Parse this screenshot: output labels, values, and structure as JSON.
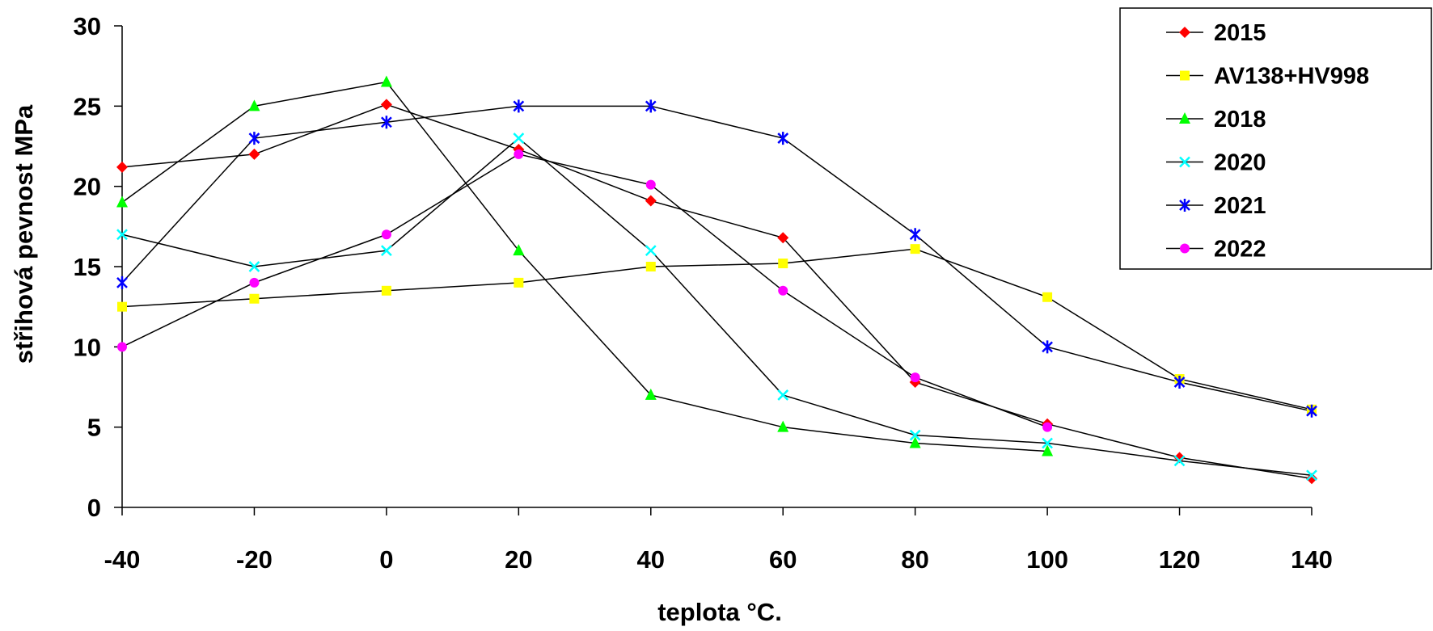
{
  "chart_data": {
    "type": "line",
    "xlabel": "teplota °C.",
    "ylabel": "střihová pevnost MPa",
    "x": [
      -40,
      -20,
      0,
      20,
      40,
      60,
      80,
      100,
      120,
      140
    ],
    "xlim": [
      -40,
      140
    ],
    "ylim": [
      0,
      30
    ],
    "yticks": [
      0,
      5,
      10,
      15,
      20,
      25,
      30
    ],
    "grid": false,
    "legend_position": "top-right",
    "series": [
      {
        "name": "2015",
        "color": "#ff0000",
        "marker": "diamond",
        "values": [
          21.2,
          22.0,
          25.1,
          22.3,
          19.1,
          16.8,
          7.8,
          5.2,
          3.1,
          1.8
        ]
      },
      {
        "name": "AV138+HV998",
        "color": "#ffff00",
        "marker": "square",
        "values": [
          12.5,
          13.0,
          13.5,
          14.0,
          15.0,
          15.2,
          16.1,
          13.1,
          8.0,
          6.1
        ]
      },
      {
        "name": "2018",
        "color": "#00ff00",
        "marker": "triangle",
        "values": [
          19.0,
          25.0,
          26.5,
          16.0,
          7.0,
          5.0,
          4.0,
          3.5,
          null,
          null
        ]
      },
      {
        "name": "2020",
        "color": "#00ffff",
        "marker": "x",
        "values": [
          17.0,
          15.0,
          16.0,
          23.0,
          16.0,
          7.0,
          4.5,
          4.0,
          2.9,
          2.0
        ]
      },
      {
        "name": "2021",
        "color": "#0000ff",
        "marker": "star",
        "values": [
          14.0,
          23.0,
          24.0,
          25.0,
          25.0,
          23.0,
          17.0,
          10.0,
          7.8,
          6.0
        ]
      },
      {
        "name": "2022",
        "color": "#ff00ff",
        "marker": "circle",
        "values": [
          10.0,
          14.0,
          17.0,
          22.0,
          20.1,
          13.5,
          8.1,
          5.0,
          null,
          null
        ]
      }
    ]
  }
}
